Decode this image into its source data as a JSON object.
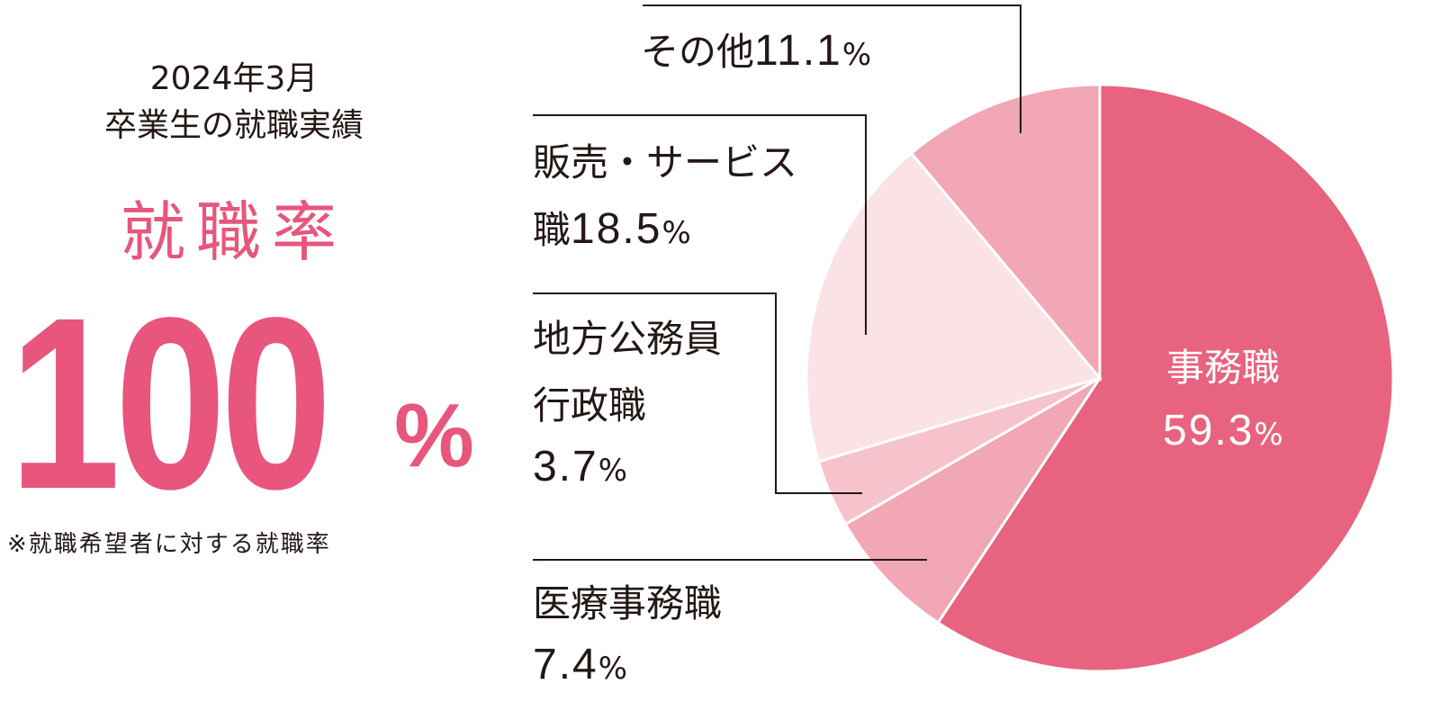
{
  "heading": {
    "line1": "2024年3月",
    "line2": "卒業生の就職実績"
  },
  "rate": {
    "label": "就職率",
    "value": "100",
    "unit": "%",
    "note": "※就職希望者に対する就職率"
  },
  "chart_data": {
    "type": "pie",
    "slices": [
      {
        "label_lines": [
          "事務職"
        ],
        "value": 59.3,
        "value_text": "59.3",
        "unit": "%",
        "color": "#e8637f"
      },
      {
        "label_lines": [
          "医療事務職"
        ],
        "value": 7.4,
        "value_text": "7.4",
        "unit": "%",
        "color": "#f2a7b4"
      },
      {
        "label_lines": [
          "地方公務員",
          "行政職"
        ],
        "value": 3.7,
        "value_text": "3.7",
        "unit": "%",
        "color": "#f6c2cc"
      },
      {
        "label_lines": [
          "販売・サービス",
          "職"
        ],
        "value": 18.5,
        "value_text": "18.5",
        "unit": "%",
        "color": "#fbe2e6"
      },
      {
        "label_lines": [
          "その他"
        ],
        "value": 11.1,
        "value_text": "11.1",
        "unit": "%",
        "color": "#f2a7b4"
      }
    ]
  }
}
